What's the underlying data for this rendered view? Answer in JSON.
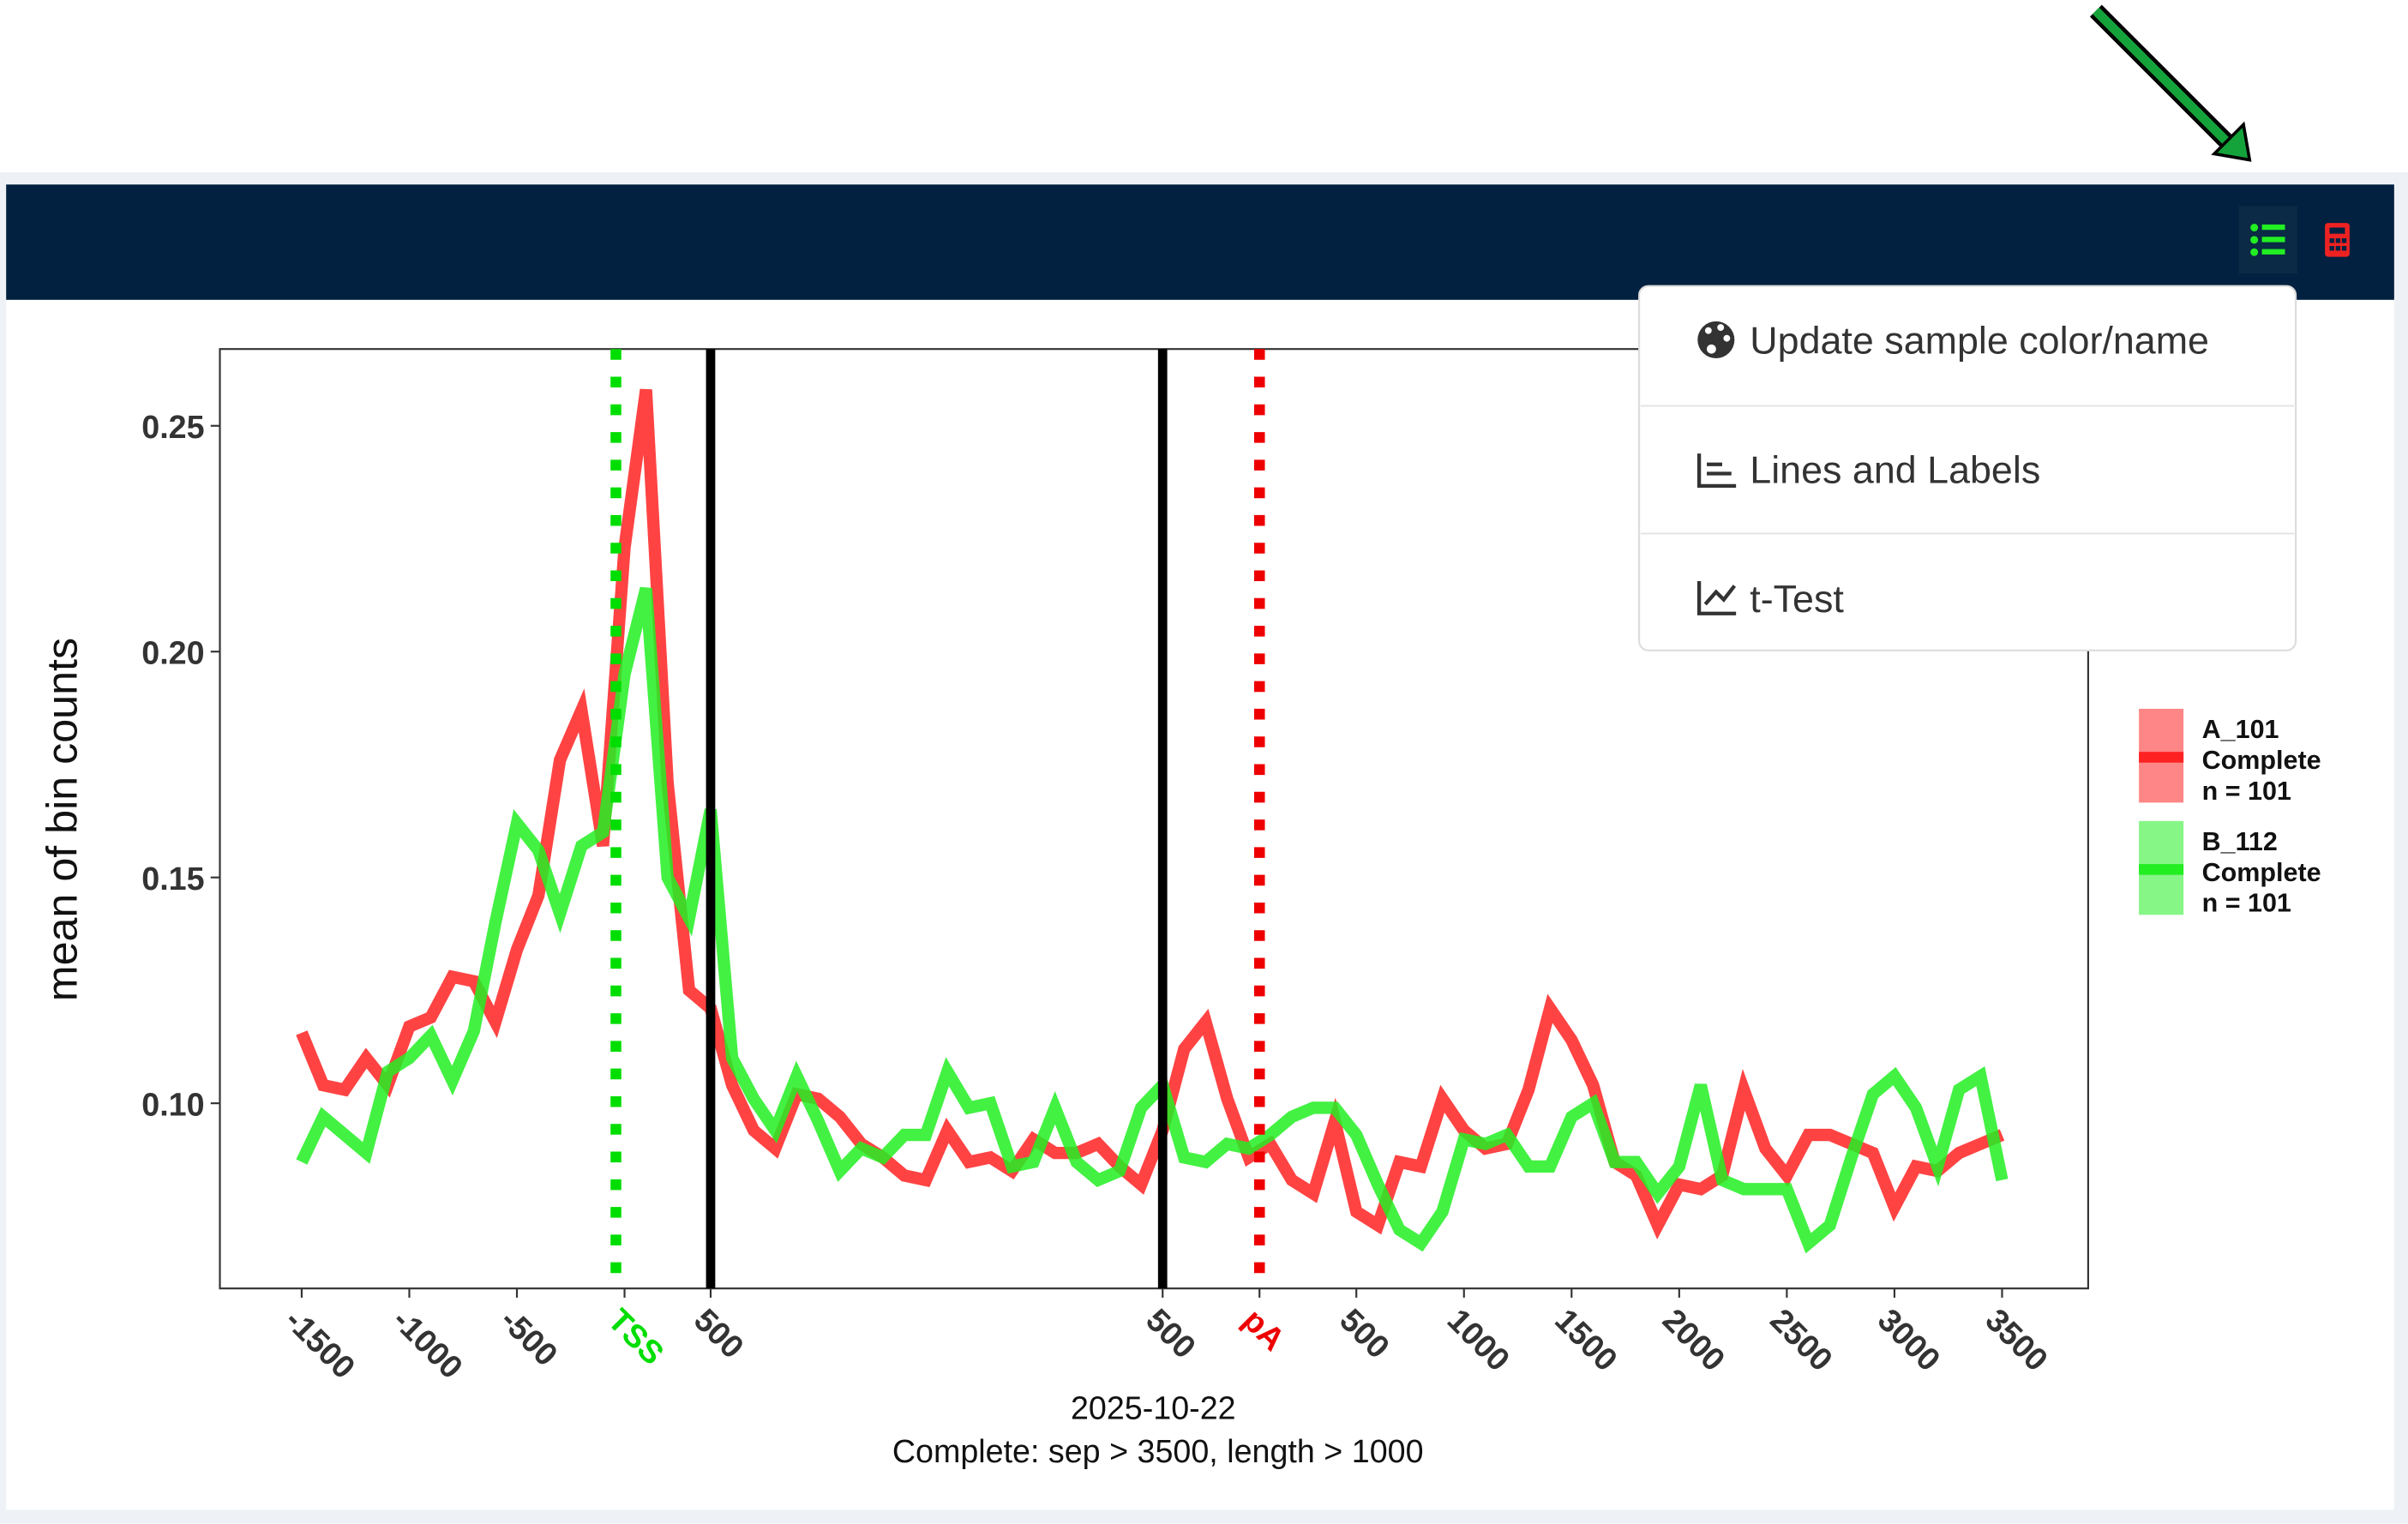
{
  "menu": {
    "items": [
      "Update sample color/name",
      "Lines and Labels",
      "t-Test"
    ]
  },
  "chart_data": {
    "type": "line",
    "ylabel": "mean of bin counts",
    "caption": [
      "2025-10-22",
      "Complete: sep > 3500, length > 1000"
    ],
    "x": [
      0,
      1,
      2,
      3,
      4,
      5,
      6,
      7,
      8,
      9,
      10,
      11,
      12,
      13,
      14,
      15,
      16,
      17,
      18,
      19,
      20,
      21,
      22,
      23,
      24,
      25,
      26,
      27,
      28,
      29,
      30,
      31,
      32,
      33,
      34,
      35,
      36,
      37,
      38,
      39,
      40,
      41,
      42,
      43,
      44,
      45,
      46,
      47,
      48,
      49,
      50,
      51,
      52,
      53,
      54,
      55,
      56,
      57,
      58,
      59,
      60,
      61,
      62,
      63,
      64,
      65,
      66,
      67,
      68,
      69,
      70,
      71,
      72,
      73,
      74,
      75,
      76,
      77,
      78,
      79
    ],
    "xlim": [
      -3.8,
      83
    ],
    "ylim": [
      0.059,
      0.267
    ],
    "xticks": [
      {
        "value": 0,
        "label": "-1500"
      },
      {
        "value": 5,
        "label": "-1000"
      },
      {
        "value": 10,
        "label": "-500"
      },
      {
        "value": 15,
        "label": "TSS",
        "color": "#00dd00"
      },
      {
        "value": 19,
        "label": "500"
      },
      {
        "value": 40,
        "label": "500"
      },
      {
        "value": 44.5,
        "label": "pA",
        "color": "#ee0000"
      },
      {
        "value": 49,
        "label": "500"
      },
      {
        "value": 54,
        "label": "1000"
      },
      {
        "value": 59,
        "label": "1500"
      },
      {
        "value": 64,
        "label": "2000"
      },
      {
        "value": 69,
        "label": "2500"
      },
      {
        "value": 74,
        "label": "3000"
      },
      {
        "value": 79,
        "label": "3500"
      }
    ],
    "yticks": [
      {
        "value": 0.1,
        "label": "0.10"
      },
      0.15,
      {
        "value": 0.2,
        "label": "0.20"
      },
      0.25
    ],
    "vlines": [
      {
        "x": 14.6,
        "color": "#00dd00",
        "style": "dotted"
      },
      {
        "x": 19,
        "color": "#000000",
        "style": "solid"
      },
      {
        "x": 40,
        "color": "#000000",
        "style": "solid"
      },
      {
        "x": 44.5,
        "color": "#ee0000",
        "style": "dotted"
      }
    ],
    "series": [
      {
        "name": "A_101\nComplete\nn = 101",
        "color": "#ff2222",
        "values": [
          0.1156,
          0.104,
          0.103,
          0.11,
          0.104,
          0.117,
          0.119,
          0.128,
          0.127,
          0.118,
          0.134,
          0.146,
          0.176,
          0.187,
          0.157,
          0.223,
          0.258,
          0.171,
          0.125,
          0.121,
          0.104,
          0.094,
          0.09,
          0.102,
          0.101,
          0.097,
          0.091,
          0.088,
          0.084,
          0.083,
          0.094,
          0.087,
          0.088,
          0.085,
          0.092,
          0.089,
          0.089,
          0.091,
          0.086,
          0.082,
          0.094,
          0.112,
          0.118,
          0.101,
          0.088,
          0.091,
          0.083,
          0.08,
          0.096,
          0.076,
          0.073,
          0.087,
          0.086,
          0.101,
          0.094,
          0.09,
          0.091,
          0.103,
          0.121,
          0.114,
          0.104,
          0.087,
          0.084,
          0.073,
          0.082,
          0.081,
          0.084,
          0.103,
          0.09,
          0.084,
          0.093,
          0.093,
          0.091,
          0.089,
          0.077,
          0.086,
          0.085,
          0.089,
          0.091,
          0.093
        ]
      },
      {
        "name": "B_112\nComplete\nn = 101",
        "color": "#22ee22",
        "values": [
          0.087,
          0.097,
          0.093,
          0.089,
          0.107,
          0.11,
          0.115,
          0.105,
          0.116,
          0.14,
          0.162,
          0.156,
          0.142,
          0.157,
          0.16,
          0.195,
          0.214,
          0.15,
          0.141,
          0.165,
          0.11,
          0.101,
          0.094,
          0.106,
          0.096,
          0.085,
          0.09,
          0.088,
          0.093,
          0.093,
          0.107,
          0.099,
          0.1,
          0.086,
          0.087,
          0.099,
          0.087,
          0.083,
          0.085,
          0.099,
          0.104,
          0.088,
          0.087,
          0.091,
          0.09,
          0.093,
          0.097,
          0.099,
          0.099,
          0.093,
          0.082,
          0.072,
          0.069,
          0.076,
          0.092,
          0.091,
          0.093,
          0.086,
          0.086,
          0.097,
          0.1,
          0.087,
          0.087,
          0.08,
          0.086,
          0.104,
          0.083,
          0.081,
          0.081,
          0.081,
          0.069,
          0.073,
          0.088,
          0.102,
          0.106,
          0.099,
          0.086,
          0.103,
          0.106,
          0.083
        ]
      }
    ]
  }
}
